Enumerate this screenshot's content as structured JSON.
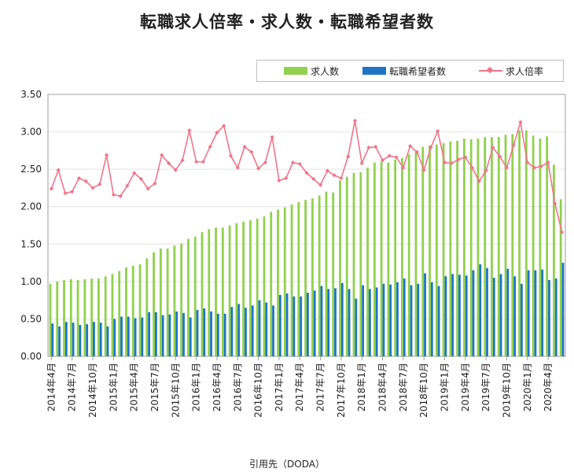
{
  "title": "転職求人倍率・求人数・転職希望者数",
  "source": "引用先（DODA）",
  "legend": {
    "jobs": "求人数",
    "seekers": "転職希望者数",
    "ratio": "求人倍率"
  },
  "colors": {
    "jobs": "#92d050",
    "seekers": "#1f75c4",
    "ratio": "#f0758a",
    "grid": "#e4e4e4"
  },
  "chart_data": {
    "type": "bar",
    "title": "転職求人倍率・求人数・転職希望者数",
    "ylim": [
      0,
      3.5
    ],
    "yticks": [
      "0.00",
      "0.50",
      "1.00",
      "1.50",
      "2.00",
      "2.50",
      "3.00",
      "3.50"
    ],
    "xtick_labels": [
      {
        "index": 0,
        "label": "2014年4月"
      },
      {
        "index": 3,
        "label": "2014年7月"
      },
      {
        "index": 6,
        "label": "2014年10月"
      },
      {
        "index": 9,
        "label": "2015年1月"
      },
      {
        "index": 12,
        "label": "2015年4月"
      },
      {
        "index": 15,
        "label": "2015年7月"
      },
      {
        "index": 18,
        "label": "2015年10月"
      },
      {
        "index": 21,
        "label": "2016年1月"
      },
      {
        "index": 24,
        "label": "2016年4月"
      },
      {
        "index": 27,
        "label": "2016年7月"
      },
      {
        "index": 30,
        "label": "2016年10月"
      },
      {
        "index": 33,
        "label": "2017年1月"
      },
      {
        "index": 36,
        "label": "2017年4月"
      },
      {
        "index": 39,
        "label": "2017年7月"
      },
      {
        "index": 42,
        "label": "2017年10月"
      },
      {
        "index": 45,
        "label": "2018年1月"
      },
      {
        "index": 48,
        "label": "2018年4月"
      },
      {
        "index": 51,
        "label": "2018年7月"
      },
      {
        "index": 54,
        "label": "2018年10月"
      },
      {
        "index": 57,
        "label": "2019年1月"
      },
      {
        "index": 60,
        "label": "2019年4月"
      },
      {
        "index": 63,
        "label": "2019年7月"
      },
      {
        "index": 66,
        "label": "2019年10月"
      },
      {
        "index": 69,
        "label": "2020年1月"
      },
      {
        "index": 72,
        "label": "2020年4月"
      }
    ],
    "series": [
      {
        "name": "求人数",
        "type": "bar",
        "values": [
          0.97,
          1.0,
          1.02,
          1.03,
          1.02,
          1.03,
          1.04,
          1.04,
          1.07,
          1.1,
          1.14,
          1.19,
          1.21,
          1.23,
          1.31,
          1.39,
          1.44,
          1.44,
          1.48,
          1.51,
          1.57,
          1.6,
          1.66,
          1.7,
          1.72,
          1.72,
          1.75,
          1.78,
          1.8,
          1.82,
          1.84,
          1.87,
          1.93,
          1.96,
          1.99,
          2.03,
          2.06,
          2.09,
          2.11,
          2.15,
          2.2,
          2.19,
          2.35,
          2.4,
          2.45,
          2.46,
          2.52,
          2.59,
          2.6,
          2.59,
          2.63,
          2.65,
          2.7,
          2.73,
          2.8,
          2.82,
          2.83,
          2.85,
          2.87,
          2.88,
          2.91,
          2.9,
          2.91,
          2.93,
          2.93,
          2.93,
          2.96,
          2.97,
          3.02,
          3.02,
          2.95,
          2.91,
          2.94,
          2.56,
          2.1
        ]
      },
      {
        "name": "転職希望者数",
        "type": "bar",
        "values": [
          0.44,
          0.4,
          0.46,
          0.45,
          0.42,
          0.43,
          0.46,
          0.45,
          0.4,
          0.5,
          0.53,
          0.53,
          0.51,
          0.52,
          0.59,
          0.59,
          0.55,
          0.56,
          0.6,
          0.58,
          0.52,
          0.62,
          0.64,
          0.6,
          0.57,
          0.57,
          0.66,
          0.7,
          0.65,
          0.68,
          0.75,
          0.72,
          0.68,
          0.82,
          0.84,
          0.8,
          0.8,
          0.85,
          0.88,
          0.94,
          0.9,
          0.91,
          0.98,
          0.9,
          0.77,
          0.95,
          0.9,
          0.92,
          0.97,
          0.96,
          0.99,
          1.04,
          0.95,
          0.97,
          1.11,
          0.99,
          0.94,
          1.07,
          1.1,
          1.09,
          1.08,
          1.15,
          1.23,
          1.18,
          1.05,
          1.1,
          1.17,
          1.07,
          0.97,
          1.15,
          1.15,
          1.16,
          1.02,
          1.04,
          1.25
        ]
      },
      {
        "name": "求人倍率",
        "type": "line",
        "values": [
          2.24,
          2.49,
          2.18,
          2.2,
          2.38,
          2.34,
          2.25,
          2.3,
          2.69,
          2.16,
          2.14,
          2.28,
          2.45,
          2.37,
          2.24,
          2.31,
          2.69,
          2.58,
          2.49,
          2.62,
          3.02,
          2.6,
          2.6,
          2.8,
          2.99,
          3.08,
          2.68,
          2.52,
          2.8,
          2.73,
          2.51,
          2.59,
          2.93,
          2.35,
          2.38,
          2.59,
          2.57,
          2.45,
          2.37,
          2.29,
          2.48,
          2.42,
          2.38,
          2.67,
          3.15,
          2.58,
          2.79,
          2.8,
          2.62,
          2.68,
          2.66,
          2.52,
          2.81,
          2.73,
          2.49,
          2.79,
          3.01,
          2.59,
          2.58,
          2.63,
          2.66,
          2.52,
          2.34,
          2.48,
          2.79,
          2.67,
          2.52,
          2.82,
          3.13,
          2.59,
          2.52,
          2.54,
          2.59,
          2.04,
          1.66
        ]
      }
    ]
  }
}
